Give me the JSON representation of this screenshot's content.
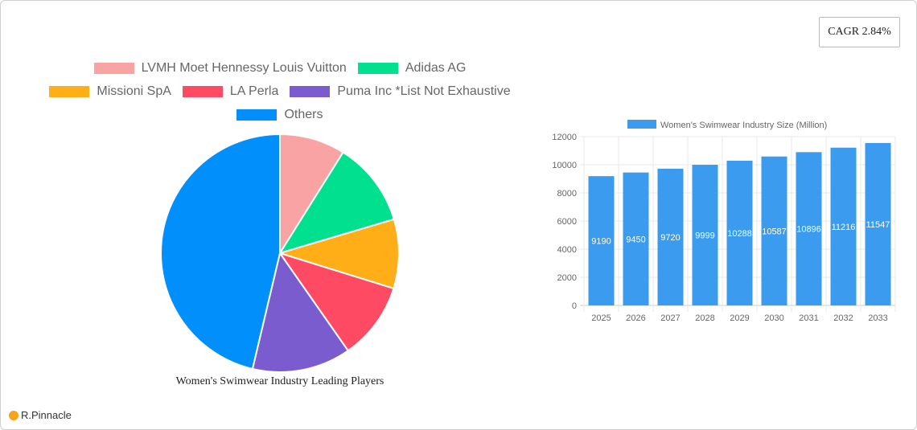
{
  "cagr_label": "CAGR 2.84%",
  "brand": "R.Pinnacle",
  "chart_data": [
    {
      "type": "pie",
      "title": "Women's Swimwear Industry Leading Players",
      "legend_position": "top",
      "labels": [
        "LVMH Moet Hennessy Louis Vuitton",
        "Adidas AG",
        "Missioni SpA",
        "LA Perla",
        "Puma Inc *List Not Exhaustive",
        "Others"
      ],
      "values": [
        8.9,
        11.5,
        9.4,
        10.5,
        13.4,
        46.3
      ],
      "colors": [
        "#f9a3a4",
        "#00e08f",
        "#ffae18",
        "#ff4a64",
        "#7a5ccf",
        "#008ffb"
      ]
    },
    {
      "type": "bar",
      "legend": "Women's Swimwear Industry Size (Million)",
      "legend_position": "top",
      "categories": [
        "2025",
        "2026",
        "2027",
        "2028",
        "2029",
        "2030",
        "2031",
        "2032",
        "2033"
      ],
      "values": [
        9190,
        9450,
        9720,
        9999,
        10288,
        10587,
        10896,
        11216,
        11547
      ],
      "ylim": [
        0,
        12000
      ],
      "yticks": [
        "0",
        "2000",
        "4000",
        "6000",
        "8000",
        "10000",
        "12000"
      ],
      "color": "#3a9bef",
      "grid": true
    }
  ]
}
